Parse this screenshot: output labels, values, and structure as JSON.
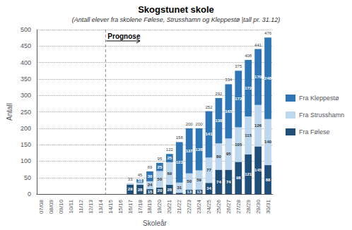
{
  "chart_data": {
    "type": "bar",
    "title": "Skogstunet skole",
    "subtitle": "(Antall elever fra skolene Følese, Strusshamn og Kleppestø |tall pr. 31.12)",
    "x_label": "Skoleår",
    "y_label": "Antall",
    "categories": [
      "07/08",
      "08/09",
      "09/10",
      "10/11",
      "11/12",
      "12/13",
      "13/14",
      "14/15",
      "15/16",
      "16/17",
      "17/18",
      "18/19",
      "19/20",
      "20/21",
      "21/22",
      "22/23",
      "23/24",
      "24/25",
      "25/26",
      "26/27",
      "27/28",
      "28/29",
      "29/30",
      "30/31"
    ],
    "series": [
      {
        "name": "Fra Følese",
        "color": "#1F4E79",
        "values": [
          0,
          0,
          0,
          0,
          0,
          0,
          0,
          0,
          0,
          29,
          28,
          15,
          20,
          28,
          4,
          13,
          13,
          34,
          74,
          74,
          98,
          121,
          145,
          88
        ],
        "value_labels": [
          null,
          null,
          null,
          null,
          null,
          null,
          null,
          null,
          null,
          "29",
          "28",
          "15",
          "20",
          "28",
          null,
          "13",
          "13",
          "34",
          "74",
          "74",
          "98",
          "121",
          "145",
          "88"
        ]
      },
      {
        "name": "Fra Strusshamn",
        "color": "#BDD7EE",
        "values": [
          0,
          0,
          0,
          0,
          0,
          0,
          0,
          0,
          0,
          4,
          7,
          24,
          50,
          69,
          31,
          50,
          59,
          77,
          80,
          95,
          105,
          115,
          126,
          140
        ],
        "value_labels": [
          null,
          null,
          null,
          null,
          null,
          null,
          null,
          null,
          null,
          null,
          null,
          "24",
          "50",
          "69",
          "31",
          "50",
          "59",
          "77",
          "80",
          "95",
          "105",
          "115",
          "126",
          "140"
        ]
      },
      {
        "name": "Fra Kleppestø",
        "color": "#2E75B6",
        "values": [
          0,
          0,
          0,
          0,
          0,
          0,
          0,
          0,
          0,
          0,
          10,
          30,
          25,
          25,
          123,
          137,
          128,
          141,
          138,
          165,
          172,
          172,
          170,
          248
        ],
        "value_labels": [
          null,
          null,
          null,
          null,
          null,
          null,
          null,
          null,
          null,
          null,
          "10",
          "30",
          "25",
          "25",
          "123",
          "137",
          "128",
          "141",
          "138",
          "165",
          "172",
          "172",
          "170",
          "248"
        ]
      }
    ],
    "totals": [
      null,
      null,
      null,
      null,
      null,
      null,
      null,
      null,
      null,
      33,
      45,
      69,
      95,
      122,
      158,
      200,
      200,
      252,
      292,
      334,
      375,
      408,
      441,
      476
    ],
    "annotations": [
      {
        "text": "Prognose",
        "category": "14/15"
      }
    ],
    "stacked": true,
    "data_labels": true,
    "ylim": [
      0,
      500
    ],
    "yticks": [
      0,
      50,
      100,
      150,
      200,
      250,
      300,
      350,
      400,
      450,
      500
    ],
    "grid": true,
    "legend": "right"
  }
}
